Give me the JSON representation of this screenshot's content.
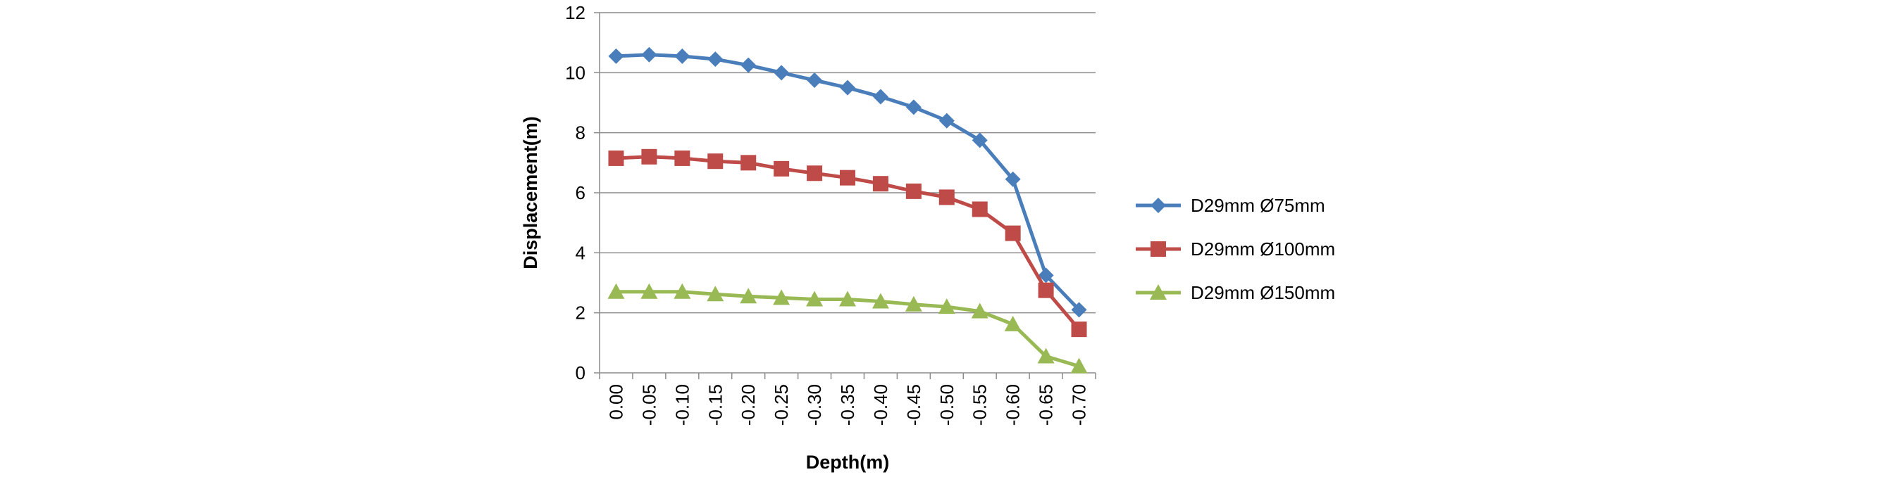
{
  "chart_data": {
    "type": "line",
    "title": "",
    "xlabel": "Depth(m)",
    "ylabel": "Displacement(m)",
    "categories": [
      "0.00",
      "-0.05",
      "-0.10",
      "-0.15",
      "-0.20",
      "-0.25",
      "-0.30",
      "-0.35",
      "-0.40",
      "-0.45",
      "-0.50",
      "-0.55",
      "-0.60",
      "-0.65",
      "-0.70"
    ],
    "yticks": [
      "0",
      "2",
      "4",
      "6",
      "8",
      "10",
      "12"
    ],
    "ylim": [
      0,
      12
    ],
    "grid": "horizontal",
    "legend_position": "right",
    "series": [
      {
        "name": "D29mm Ø75mm",
        "color": "#4a7ebb",
        "marker": "diamond",
        "values": [
          10.55,
          10.6,
          10.55,
          10.45,
          10.25,
          10.0,
          9.75,
          9.5,
          9.2,
          8.85,
          8.4,
          7.75,
          6.45,
          3.25,
          2.1
        ]
      },
      {
        "name": "D29mm Ø100mm",
        "color": "#be4b48",
        "marker": "square",
        "values": [
          7.15,
          7.2,
          7.15,
          7.05,
          7.0,
          6.8,
          6.65,
          6.5,
          6.3,
          6.05,
          5.85,
          5.45,
          4.65,
          2.75,
          1.45
        ]
      },
      {
        "name": "D29mm Ø150mm",
        "color": "#98b954",
        "marker": "triangle",
        "values": [
          2.7,
          2.7,
          2.7,
          2.62,
          2.55,
          2.5,
          2.45,
          2.45,
          2.38,
          2.28,
          2.2,
          2.05,
          1.62,
          0.55,
          0.22
        ]
      }
    ]
  }
}
